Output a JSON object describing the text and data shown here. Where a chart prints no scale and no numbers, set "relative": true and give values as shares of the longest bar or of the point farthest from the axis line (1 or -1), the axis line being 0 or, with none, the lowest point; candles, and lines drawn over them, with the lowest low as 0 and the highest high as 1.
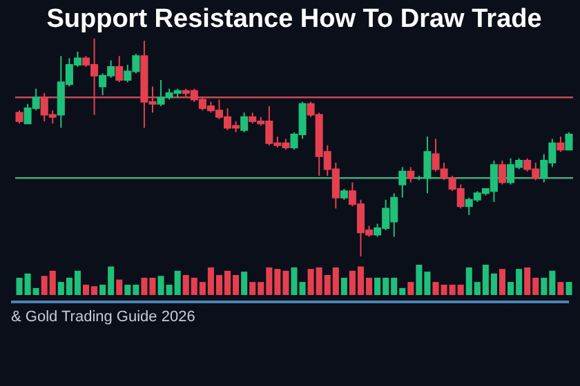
{
  "chart_data": [
    {
      "type": "candlestick",
      "title": "Support Resistance How To Draw Trade",
      "relative": true,
      "categories": [
        null,
        null,
        null,
        null,
        null,
        null,
        null,
        null,
        null,
        null,
        null,
        null,
        null,
        null,
        null,
        null,
        null,
        null,
        null,
        null,
        null,
        null,
        null,
        null,
        null,
        null,
        null,
        null,
        null,
        null,
        null,
        null,
        null,
        null,
        null,
        null,
        null,
        null,
        null,
        null,
        null,
        null,
        null,
        null,
        null,
        null,
        null,
        null,
        null,
        null,
        null,
        null,
        null,
        null,
        null,
        null,
        null,
        null,
        null,
        null,
        null,
        null,
        null,
        null,
        null,
        null,
        null
      ],
      "ohlc": [
        [
          0.66,
          0.67,
          0.61,
          0.62
        ],
        [
          0.61,
          0.7,
          0.61,
          0.68
        ],
        [
          0.68,
          0.77,
          0.67,
          0.73
        ],
        [
          0.73,
          0.75,
          0.62,
          0.65
        ],
        [
          0.65,
          0.67,
          0.61,
          0.64
        ],
        [
          0.65,
          0.92,
          0.59,
          0.8
        ],
        [
          0.79,
          0.91,
          0.78,
          0.88
        ],
        [
          0.88,
          0.94,
          0.87,
          0.91
        ],
        [
          0.91,
          0.92,
          0.87,
          0.88
        ],
        [
          0.88,
          1.0,
          0.65,
          0.83
        ],
        [
          0.78,
          0.84,
          0.74,
          0.83
        ],
        [
          0.83,
          0.9,
          0.82,
          0.87
        ],
        [
          0.87,
          0.92,
          0.8,
          0.81
        ],
        [
          0.81,
          0.88,
          0.8,
          0.85
        ],
        [
          0.85,
          0.93,
          0.84,
          0.92
        ],
        [
          0.92,
          0.99,
          0.59,
          0.71
        ],
        [
          0.71,
          0.78,
          0.66,
          0.7
        ],
        [
          0.7,
          0.81,
          0.69,
          0.73
        ],
        [
          0.73,
          0.77,
          0.72,
          0.75
        ],
        [
          0.75,
          0.77,
          0.73,
          0.76
        ],
        [
          0.76,
          0.77,
          0.73,
          0.75
        ],
        [
          0.76,
          0.77,
          0.71,
          0.72
        ],
        [
          0.72,
          0.73,
          0.67,
          0.68
        ],
        [
          0.69,
          0.71,
          0.66,
          0.67
        ],
        [
          0.67,
          0.72,
          0.63,
          0.64
        ],
        [
          0.64,
          0.68,
          0.58,
          0.59
        ],
        [
          0.6,
          0.62,
          0.57,
          0.59
        ],
        [
          0.58,
          0.66,
          0.57,
          0.64
        ],
        [
          0.64,
          0.66,
          0.61,
          0.62
        ],
        [
          0.62,
          0.64,
          0.6,
          0.61
        ],
        [
          0.62,
          0.69,
          0.51,
          0.52
        ],
        [
          0.52,
          0.55,
          0.5,
          0.51
        ],
        [
          0.52,
          0.54,
          0.49,
          0.5
        ],
        [
          0.5,
          0.57,
          0.49,
          0.56
        ],
        [
          0.56,
          0.71,
          0.54,
          0.7
        ],
        [
          0.7,
          0.71,
          0.64,
          0.65
        ],
        [
          0.65,
          0.66,
          0.37,
          0.46
        ],
        [
          0.48,
          0.51,
          0.37,
          0.4
        ],
        [
          0.4,
          0.43,
          0.22,
          0.27
        ],
        [
          0.27,
          0.31,
          0.26,
          0.3
        ],
        [
          0.3,
          0.34,
          0.23,
          0.24
        ],
        [
          0.24,
          0.26,
          0,
          0.11
        ],
        [
          0.12,
          0.14,
          0.09,
          0.1
        ],
        [
          0.1,
          0.15,
          0.09,
          0.13
        ],
        [
          0.13,
          0.26,
          0.12,
          0.22
        ],
        [
          0.16,
          0.29,
          0.09,
          0.27
        ],
        [
          0.33,
          0.41,
          0.27,
          0.39
        ],
        [
          0.39,
          0.41,
          0.34,
          0.36
        ],
        [
          0.36,
          0.37,
          0.35,
          0.36
        ],
        [
          0.36,
          0.55,
          0.29,
          0.48
        ],
        [
          0.47,
          0.54,
          0.39,
          0.4
        ],
        [
          0.4,
          0.43,
          0.35,
          0.36
        ],
        [
          0.36,
          0.37,
          0.3,
          0.31
        ],
        [
          0.31,
          0.33,
          0.22,
          0.23
        ],
        [
          0.23,
          0.27,
          0.19,
          0.26
        ],
        [
          0.26,
          0.3,
          0.25,
          0.29
        ],
        [
          0.29,
          0.31,
          0.28,
          0.31
        ],
        [
          0.3,
          0.44,
          0.25,
          0.42
        ],
        [
          0.42,
          0.44,
          0.33,
          0.34
        ],
        [
          0.34,
          0.45,
          0.33,
          0.42
        ],
        [
          0.41,
          0.45,
          0.4,
          0.44
        ],
        [
          0.44,
          0.45,
          0.39,
          0.4
        ],
        [
          0.4,
          0.43,
          0.35,
          0.36
        ],
        [
          0.36,
          0.47,
          0.34,
          0.44
        ],
        [
          0.43,
          0.54,
          0.41,
          0.52
        ],
        [
          0.52,
          0.55,
          0.48,
          0.49
        ],
        [
          0.49,
          0.57,
          0.49,
          0.56
        ]
      ],
      "colors": [
        "#e5404f",
        "#1fc07a",
        "#1fc07a",
        "#e5404f",
        "#e5404f",
        "#1fc07a",
        "#1fc07a",
        "#1fc07a",
        "#e5404f",
        "#e5404f",
        "#1fc07a",
        "#1fc07a",
        "#e5404f",
        "#1fc07a",
        "#1fc07a",
        "#e5404f",
        "#e5404f",
        "#1fc07a",
        "#1fc07a",
        "#1fc07a",
        "#e5404f",
        "#e5404f",
        "#e5404f",
        "#e5404f",
        "#e5404f",
        "#e5404f",
        "#e5404f",
        "#1fc07a",
        "#e5404f",
        "#e5404f",
        "#e5404f",
        "#e5404f",
        "#e5404f",
        "#1fc07a",
        "#1fc07a",
        "#e5404f",
        "#e5404f",
        "#e5404f",
        "#e5404f",
        "#1fc07a",
        "#e5404f",
        "#e5404f",
        "#e5404f",
        "#1fc07a",
        "#1fc07a",
        "#1fc07a",
        "#1fc07a",
        "#e5404f",
        "#1fc07a",
        "#1fc07a",
        "#e5404f",
        "#e5404f",
        "#e5404f",
        "#e5404f",
        "#1fc07a",
        "#1fc07a",
        "#1fc07a",
        "#1fc07a",
        "#e5404f",
        "#1fc07a",
        "#1fc07a",
        "#e5404f",
        "#e5404f",
        "#1fc07a",
        "#1fc07a",
        "#e5404f",
        "#1fc07a"
      ],
      "ref_lines": [
        {
          "axis": "y",
          "value": 0.73,
          "color": "#c94a52"
        },
        {
          "axis": "y",
          "value": 0.36,
          "color": "#3fae7a"
        }
      ]
    },
    {
      "type": "bar",
      "relative": true,
      "annotations": [
        "& Gold Trading Guide 2026"
      ],
      "categories": [
        null,
        null,
        null,
        null,
        null,
        null,
        null,
        null,
        null,
        null,
        null,
        null,
        null,
        null,
        null,
        null,
        null,
        null,
        null,
        null,
        null,
        null,
        null,
        null,
        null,
        null,
        null,
        null,
        null,
        null,
        null,
        null,
        null,
        null,
        null,
        null,
        null,
        null,
        null,
        null,
        null,
        null,
        null,
        null,
        null,
        null,
        null,
        null,
        null,
        null,
        null,
        null,
        null,
        null,
        null,
        null,
        null,
        null,
        null,
        null,
        null,
        null,
        null,
        null,
        null,
        null,
        null
      ],
      "values": [
        0.57,
        0.71,
        0.23,
        0.63,
        0.8,
        0.43,
        0.57,
        0.8,
        0.34,
        0.29,
        0.34,
        0.94,
        0.51,
        0.34,
        0.34,
        0.57,
        0.57,
        0.63,
        0.34,
        0.8,
        0.66,
        0.57,
        0.43,
        0.91,
        0.66,
        0.8,
        0.66,
        0.77,
        0.43,
        0.43,
        0.91,
        0.86,
        0.8,
        0.91,
        0.43,
        0.86,
        0.91,
        0.66,
        0.91,
        0.57,
        0.8,
        0.94,
        0.57,
        0.57,
        0.57,
        0.57,
        0.23,
        0.43,
        1,
        0.77,
        0.43,
        0.34,
        0.34,
        0.34,
        0.91,
        0.43,
        1,
        0.71,
        0.86,
        0.43,
        0.86,
        0.91,
        0.57,
        0.57,
        0.8,
        0.43,
        0.43
      ],
      "colors": [
        "#1fc07a",
        "#1fc07a",
        "#1fc07a",
        "#e5404f",
        "#e5404f",
        "#1fc07a",
        "#1fc07a",
        "#1fc07a",
        "#e5404f",
        "#e5404f",
        "#1fc07a",
        "#1fc07a",
        "#e5404f",
        "#1fc07a",
        "#1fc07a",
        "#e5404f",
        "#e5404f",
        "#1fc07a",
        "#1fc07a",
        "#1fc07a",
        "#e5404f",
        "#e5404f",
        "#e5404f",
        "#e5404f",
        "#e5404f",
        "#e5404f",
        "#e5404f",
        "#1fc07a",
        "#e5404f",
        "#e5404f",
        "#e5404f",
        "#e5404f",
        "#e5404f",
        "#1fc07a",
        "#1fc07a",
        "#e5404f",
        "#e5404f",
        "#e5404f",
        "#e5404f",
        "#1fc07a",
        "#e5404f",
        "#e5404f",
        "#e5404f",
        "#1fc07a",
        "#1fc07a",
        "#1fc07a",
        "#1fc07a",
        "#e5404f",
        "#1fc07a",
        "#1fc07a",
        "#e5404f",
        "#e5404f",
        "#e5404f",
        "#e5404f",
        "#1fc07a",
        "#1fc07a",
        "#1fc07a",
        "#1fc07a",
        "#e5404f",
        "#1fc07a",
        "#1fc07a",
        "#e5404f",
        "#e5404f",
        "#1fc07a",
        "#1fc07a",
        "#e5404f",
        "#1fc07a"
      ]
    }
  ]
}
